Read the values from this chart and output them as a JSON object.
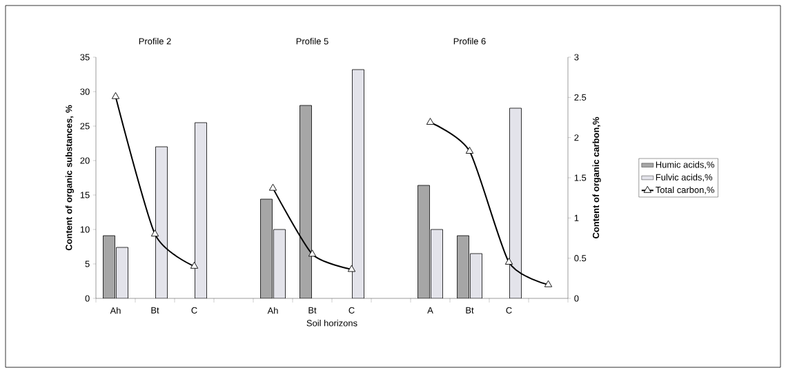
{
  "chart_data": {
    "type": "bar",
    "xlabel": "Soil horizons",
    "ylabel": "Content of organic substances, %",
    "y2label": "Content of organic carbon,%",
    "categories": [
      "Ah",
      "Bt",
      "C",
      null,
      "Ah",
      "Bt",
      "C",
      null,
      "A",
      "Bt",
      "C",
      null
    ],
    "series": [
      {
        "name": "Humic acids,%",
        "color": "#a6a6a6",
        "values": [
          9.1,
          null,
          null,
          null,
          14.4,
          28,
          null,
          null,
          16.4,
          9.1,
          null,
          null
        ]
      },
      {
        "name": "Fulvic acids,%",
        "color": "#e3e3ea",
        "values": [
          7.4,
          22,
          25.5,
          null,
          10,
          null,
          33.2,
          null,
          10,
          6.5,
          27.6,
          null
        ]
      },
      {
        "name": "Total carbon,%",
        "type": "line",
        "axis": "y2",
        "color": "#000000",
        "marker": "triangle",
        "values": [
          2.51,
          0.8,
          0.4,
          null,
          1.37,
          0.55,
          0.36,
          null,
          2.19,
          1.83,
          0.45,
          0.17
        ]
      }
    ],
    "ylim": [
      0,
      35
    ],
    "yticks": [
      0,
      5,
      10,
      15,
      20,
      25,
      30,
      35
    ],
    "y2lim": [
      0,
      3
    ],
    "y2ticks": [
      0,
      0.5,
      1,
      1.5,
      2,
      2.5,
      3
    ],
    "annotations": [
      "Profile 2",
      "Profile 5",
      "Profile 6"
    ],
    "legend": "right",
    "grid": false
  }
}
